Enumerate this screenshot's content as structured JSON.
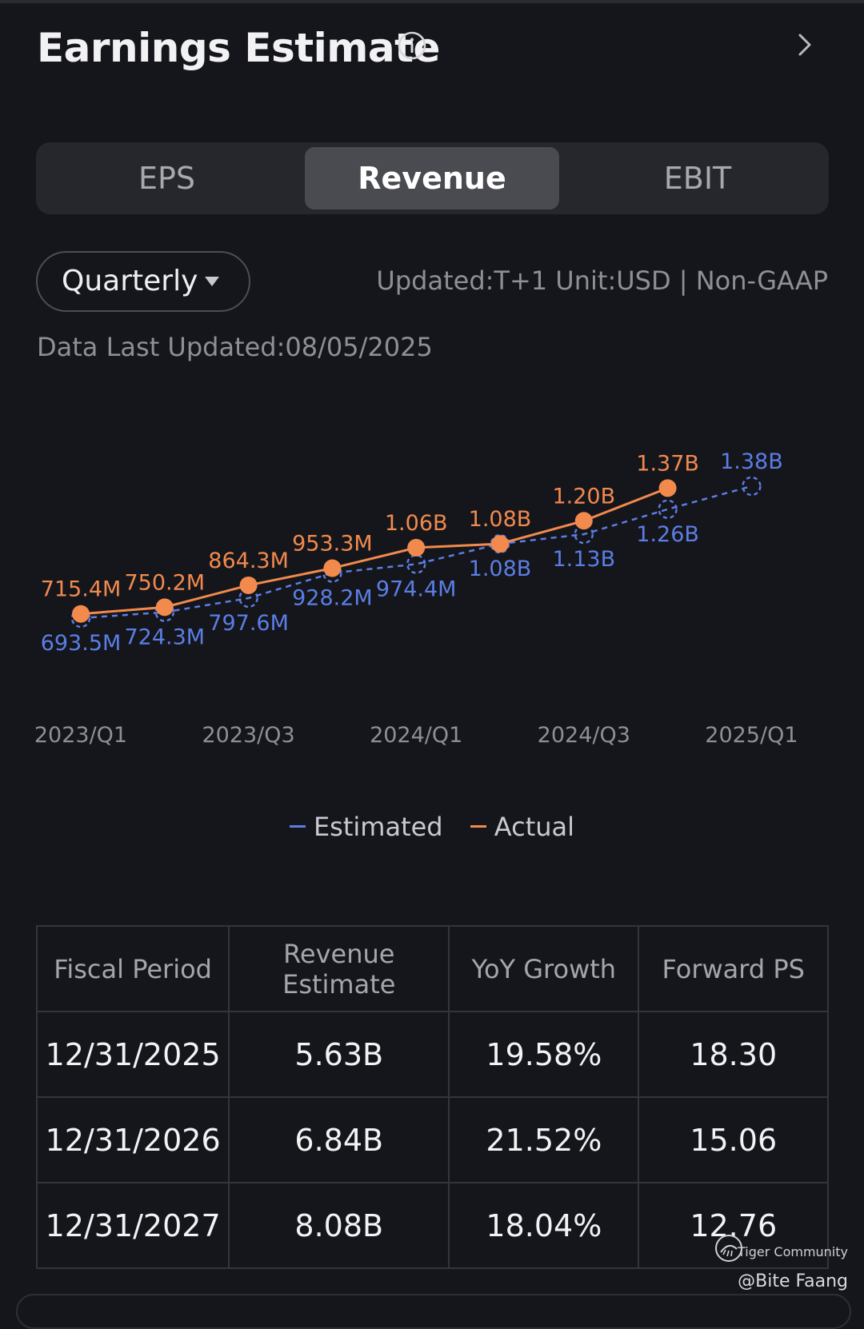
{
  "header": {
    "title": "Earnings Estimate"
  },
  "tabs": [
    {
      "label": "EPS",
      "active": false
    },
    {
      "label": "Revenue",
      "active": true
    },
    {
      "label": "EBIT",
      "active": false
    }
  ],
  "period": {
    "selected": "Quarterly"
  },
  "meta": {
    "updated_info": "Updated:T+1 Unit:USD | Non-GAAP",
    "data_last_updated": "Data Last Updated:08/05/2025"
  },
  "colors": {
    "estimated": "#5b7ee5",
    "actual": "#f28a4e",
    "background": "#15161b"
  },
  "chart_data": {
    "type": "line",
    "x": [
      "2023/Q1",
      "2023/Q2",
      "2023/Q3",
      "2023/Q4",
      "2024/Q1",
      "2024/Q2",
      "2024/Q3",
      "2024/Q4",
      "2025/Q1"
    ],
    "x_tick_labels": [
      "2023/Q1",
      "2023/Q3",
      "2024/Q1",
      "2024/Q3",
      "2025/Q1"
    ],
    "series": [
      {
        "name": "Estimated",
        "style": "dashed",
        "values": [
          693.5,
          724.3,
          797.6,
          928.2,
          974.4,
          1080,
          1130,
          1260,
          1380
        ],
        "labels": [
          "693.5M",
          "724.3M",
          "797.6M",
          "928.2M",
          "974.4M",
          "1.08B",
          "1.13B",
          "1.26B",
          "1.38B"
        ]
      },
      {
        "name": "Actual",
        "style": "solid",
        "values": [
          715.4,
          750.2,
          864.3,
          953.3,
          1060,
          1080,
          1200,
          1370,
          null
        ],
        "labels": [
          "715.4M",
          "750.2M",
          "864.3M",
          "953.3M",
          "1.06B",
          "1.08B",
          "1.20B",
          "1.37B",
          null
        ]
      }
    ],
    "unit": "USD (millions)",
    "grid": false,
    "legend_position": "bottom"
  },
  "table": {
    "headers": [
      "Fiscal Period",
      "Revenue Estimate",
      "YoY Growth",
      "Forward PS"
    ],
    "rows": [
      [
        "12/31/2025",
        "5.63B",
        "19.58%",
        "18.30"
      ],
      [
        "12/31/2026",
        "6.84B",
        "21.52%",
        "15.06"
      ],
      [
        "12/31/2027",
        "8.08B",
        "18.04%",
        "12.76"
      ]
    ]
  },
  "watermark": {
    "brand": "Tiger Community",
    "user": "@Bite Faang"
  }
}
